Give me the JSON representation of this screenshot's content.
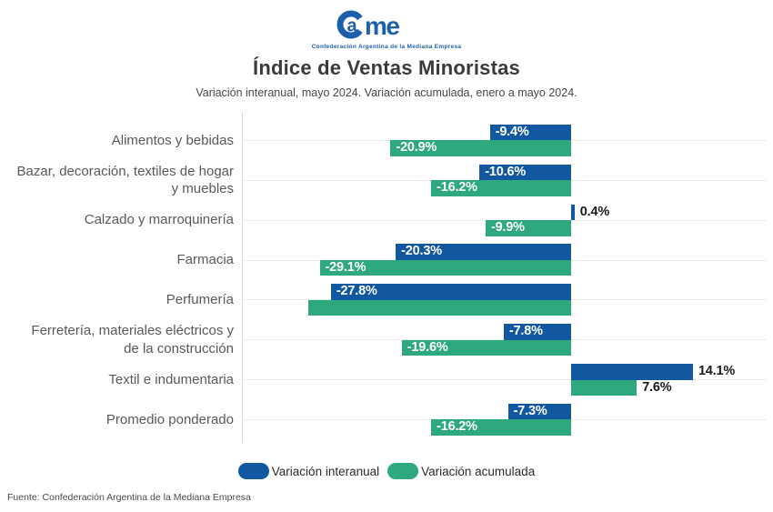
{
  "logo": {
    "brand_a": "a",
    "brand_me": "me",
    "tagline": "Confederación Argentina de la Mediana Empresa"
  },
  "header": {
    "title": "Índice de Ventas Minoristas",
    "subtitle": "Variación interanual, mayo 2024. Variación acumulada, enero a mayo 2024."
  },
  "chart_data": {
    "type": "bar",
    "orientation": "horizontal",
    "value_unit": "%",
    "xlim": [
      -38,
      23
    ],
    "grid": "light horizontal line at each category center",
    "legend_position": "bottom-center",
    "categories": [
      {
        "lines": [
          "Alimentos y bebidas"
        ]
      },
      {
        "lines": [
          "Bazar, decoración, textiles de hogar",
          "y muebles"
        ]
      },
      {
        "lines": [
          "Calzado y marroquinería"
        ]
      },
      {
        "lines": [
          "Farmacia"
        ]
      },
      {
        "lines": [
          "Perfumería"
        ]
      },
      {
        "lines": [
          "Ferretería, materiales eléctricos y",
          "de la construcción"
        ]
      },
      {
        "lines": [
          "Textil e indumentaria"
        ]
      },
      {
        "lines": [
          "Promedio ponderado"
        ]
      }
    ],
    "series": [
      {
        "name": "Variación interanual",
        "color": "#1158A1",
        "values": [
          -9.4,
          -10.6,
          0.4,
          -20.3,
          -27.8,
          -7.8,
          14.1,
          -7.3
        ],
        "labels": [
          "-9.4%",
          "-10.6%",
          "0.4%",
          "-20.3%",
          "-27.8%",
          "-7.8%",
          "14.1%",
          "-7.3%"
        ]
      },
      {
        "name": "Variación acumulada",
        "color": "#2EA87D",
        "values": [
          -20.9,
          -16.2,
          -9.9,
          -29.1,
          -30.4,
          -19.6,
          7.6,
          -16.2
        ],
        "labels": [
          "-20.9%",
          "-16.2%",
          "-9.9%",
          "-29.1%",
          "",
          "-19.6%",
          "7.6%",
          "-16.2%"
        ]
      }
    ]
  },
  "legend": [
    {
      "label": "Variación interanual",
      "color": "#1158A1"
    },
    {
      "label": "Variación acumulada",
      "color": "#2EA87D"
    }
  ],
  "footer": {
    "source": "Fuente: Confederación Argentina de la Mediana Empresa"
  },
  "colors": {
    "interanual_blue": "#1158A1",
    "acumulada_green": "#2EA87D",
    "logo_blue": "#1C60AA"
  }
}
